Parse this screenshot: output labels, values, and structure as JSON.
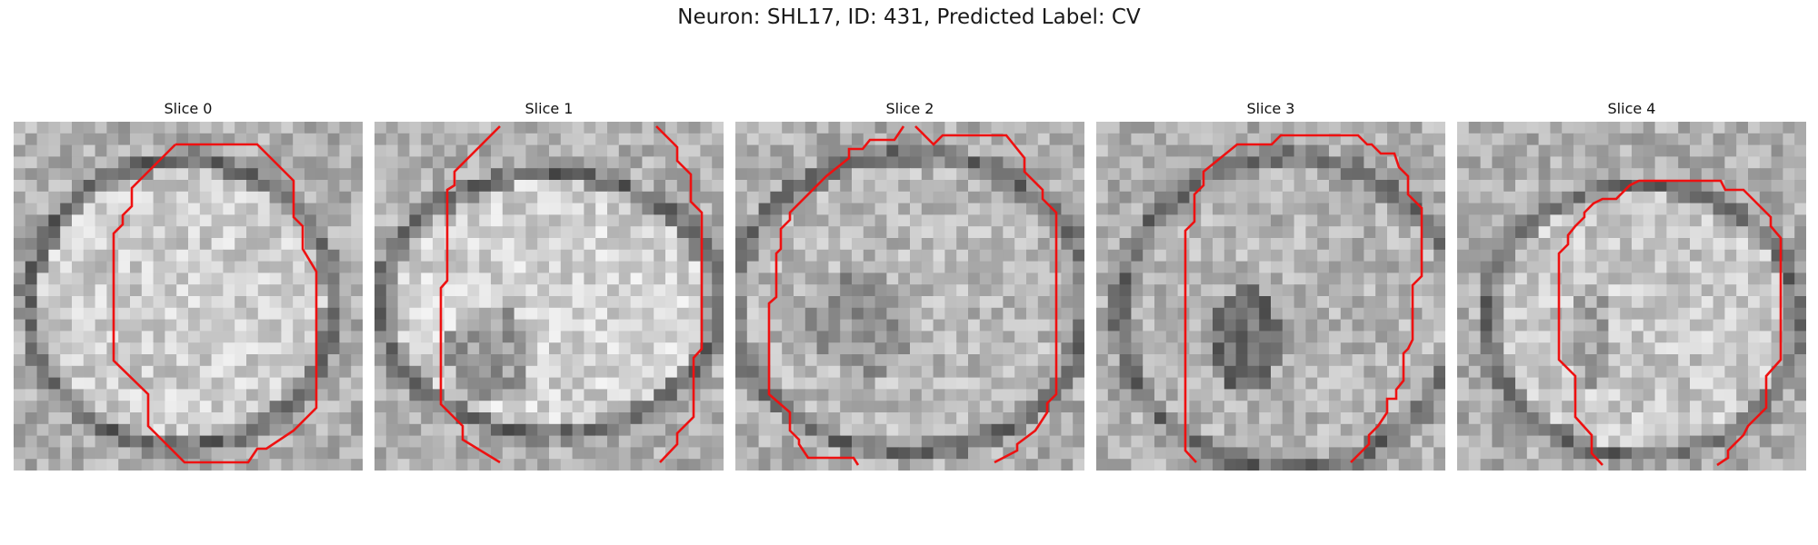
{
  "title": "Neuron: SHL17, ID: 431, Predicted Label: CV",
  "contour_color": "#ee1111",
  "panels": [
    {
      "label": "Slice 0"
    },
    {
      "label": "Slice 1"
    },
    {
      "label": "Slice 2"
    },
    {
      "label": "Slice 3"
    },
    {
      "label": "Slice 4"
    }
  ]
}
